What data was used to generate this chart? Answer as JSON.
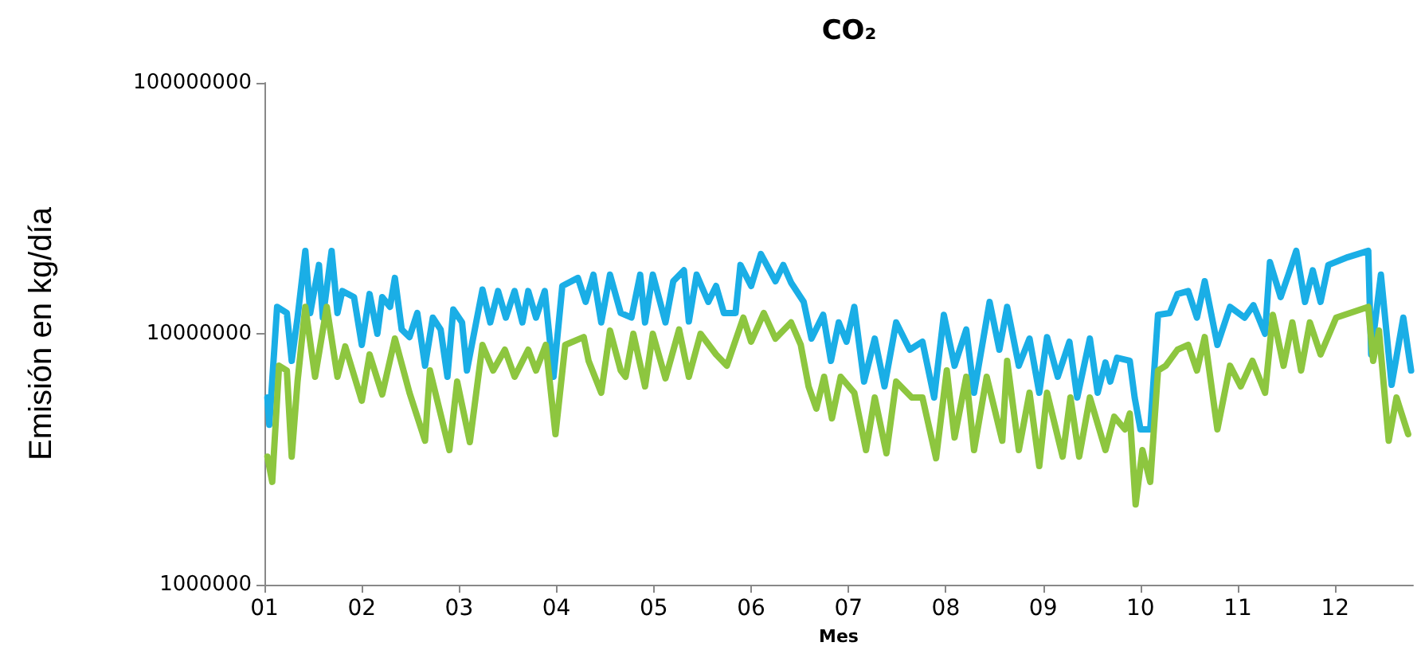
{
  "chart_data": {
    "type": "line",
    "title": "CO₂",
    "xlabel": "Mes",
    "ylabel": "Emisión en kg/día",
    "log": "y",
    "marker": "none",
    "line_style": "solid",
    "xlim": [
      1,
      12.8
    ],
    "xticks": [
      {
        "value": 1,
        "label": "01"
      },
      {
        "value": 2,
        "label": "02"
      },
      {
        "value": 3,
        "label": "03"
      },
      {
        "value": 4,
        "label": "04"
      },
      {
        "value": 5,
        "label": "05"
      },
      {
        "value": 6,
        "label": "06"
      },
      {
        "value": 7,
        "label": "07"
      },
      {
        "value": 8,
        "label": "08"
      },
      {
        "value": 9,
        "label": "09"
      },
      {
        "value": 10,
        "label": "10"
      },
      {
        "value": 11,
        "label": "11"
      },
      {
        "value": 12,
        "label": "12"
      }
    ],
    "ylim": [
      1000000,
      100000000
    ],
    "yticks": [
      1000000,
      10000000,
      100000000
    ],
    "series": [
      {
        "color": "#1aaee6",
        "x": [
          1.03,
          1.05,
          1.13,
          1.23,
          1.28,
          1.34,
          1.42,
          1.47,
          1.56,
          1.6,
          1.69,
          1.75,
          1.8,
          1.92,
          2.0,
          2.08,
          2.16,
          2.21,
          2.29,
          2.34,
          2.41,
          2.49,
          2.57,
          2.65,
          2.73,
          2.81,
          2.88,
          2.94,
          3.03,
          3.08,
          3.24,
          3.32,
          3.4,
          3.48,
          3.57,
          3.65,
          3.71,
          3.79,
          3.88,
          3.97,
          4.06,
          4.22,
          4.3,
          4.38,
          4.46,
          4.55,
          4.66,
          4.77,
          4.86,
          4.91,
          4.99,
          5.12,
          5.2,
          5.31,
          5.36,
          5.44,
          5.56,
          5.64,
          5.72,
          5.84,
          5.89,
          6.0,
          6.1,
          6.25,
          6.33,
          6.41,
          6.54,
          6.62,
          6.74,
          6.82,
          6.9,
          6.98,
          7.06,
          7.16,
          7.27,
          7.37,
          7.49,
          7.63,
          7.76,
          7.88,
          7.98,
          8.09,
          8.21,
          8.29,
          8.45,
          8.55,
          8.63,
          8.75,
          8.86,
          8.96,
          9.04,
          9.15,
          9.27,
          9.35,
          9.48,
          9.56,
          9.64,
          9.69,
          9.76,
          9.89,
          9.94,
          10.0,
          10.1,
          10.18,
          10.3,
          10.38,
          10.49,
          10.58,
          10.66,
          10.79,
          10.92,
          11.07,
          11.16,
          11.28,
          11.33,
          11.44,
          11.52,
          11.6,
          11.69,
          11.77,
          11.85,
          11.93,
          12.13,
          12.34,
          12.37,
          12.47,
          12.58,
          12.7,
          12.78
        ],
        "values": [
          5570000,
          4340000,
          12800000,
          12100000,
          7800000,
          11600000,
          21400000,
          12100000,
          18800000,
          11600000,
          21400000,
          12100000,
          14800000,
          14000000,
          9030000,
          14400000,
          10000000,
          14000000,
          12800000,
          16700000,
          10400000,
          9700000,
          12100000,
          7460000,
          11600000,
          10400000,
          6740000,
          12500000,
          11100000,
          7140000,
          15000000,
          11100000,
          14800000,
          11600000,
          14800000,
          11100000,
          14800000,
          11600000,
          14800000,
          6740000,
          15500000,
          16700000,
          13400000,
          17200000,
          11100000,
          17200000,
          12100000,
          11600000,
          17200000,
          11100000,
          17200000,
          11100000,
          16200000,
          17900000,
          11200000,
          17200000,
          13400000,
          15500000,
          12100000,
          12100000,
          18800000,
          15500000,
          20800000,
          16200000,
          18800000,
          16000000,
          13400000,
          9570000,
          11900000,
          7800000,
          11100000,
          9300000,
          12800000,
          6450000,
          9570000,
          6170000,
          11100000,
          8640000,
          9300000,
          5570000,
          11900000,
          7460000,
          10400000,
          5820000,
          13400000,
          8640000,
          12800000,
          7460000,
          9570000,
          5820000,
          9700000,
          6740000,
          9300000,
          5570000,
          9570000,
          5820000,
          7680000,
          6450000,
          8030000,
          7800000,
          5570000,
          4160000,
          4160000,
          11900000,
          12100000,
          14400000,
          14800000,
          11600000,
          16200000,
          9030000,
          12800000,
          11600000,
          13000000,
          10000000,
          19300000,
          14000000,
          17200000,
          21400000,
          13400000,
          17900000,
          13400000,
          18800000,
          20200000,
          21400000,
          8270000,
          17200000,
          6260000,
          11600000,
          7140000
        ]
      },
      {
        "color": "#8dc63f",
        "x": [
          1.03,
          1.08,
          1.15,
          1.23,
          1.28,
          1.34,
          1.42,
          1.52,
          1.64,
          1.75,
          1.83,
          2.0,
          2.08,
          2.21,
          2.34,
          2.49,
          2.65,
          2.7,
          2.9,
          2.98,
          3.11,
          3.24,
          3.35,
          3.47,
          3.57,
          3.71,
          3.79,
          3.89,
          3.99,
          4.09,
          4.28,
          4.33,
          4.46,
          4.55,
          4.66,
          4.71,
          4.79,
          4.91,
          4.99,
          5.12,
          5.26,
          5.36,
          5.48,
          5.64,
          5.75,
          5.92,
          6.0,
          6.13,
          6.25,
          6.41,
          6.51,
          6.59,
          6.67,
          6.75,
          6.83,
          6.92,
          7.06,
          7.18,
          7.27,
          7.39,
          7.49,
          7.65,
          7.76,
          7.9,
          8.01,
          8.09,
          8.21,
          8.29,
          8.42,
          8.58,
          8.63,
          8.75,
          8.86,
          8.96,
          9.04,
          9.2,
          9.28,
          9.37,
          9.48,
          9.64,
          9.73,
          9.84,
          9.89,
          9.95,
          10.02,
          10.1,
          10.18,
          10.26,
          10.38,
          10.49,
          10.58,
          10.66,
          10.79,
          10.92,
          11.03,
          11.15,
          11.28,
          11.36,
          11.47,
          11.56,
          11.65,
          11.74,
          11.85,
          12.01,
          12.34,
          12.39,
          12.45,
          12.55,
          12.63,
          12.75
        ],
        "values": [
          3240000,
          2570000,
          7460000,
          7140000,
          3240000,
          6450000,
          12800000,
          6740000,
          12800000,
          6740000,
          8900000,
          5410000,
          8270000,
          5730000,
          9570000,
          5820000,
          3750000,
          7140000,
          3440000,
          6450000,
          3700000,
          9030000,
          7140000,
          8640000,
          6740000,
          8640000,
          7140000,
          9030000,
          3980000,
          9030000,
          9700000,
          7800000,
          5820000,
          10300000,
          7140000,
          6740000,
          10000000,
          6170000,
          10000000,
          6640000,
          10400000,
          6740000,
          10000000,
          8270000,
          7460000,
          11600000,
          9300000,
          12100000,
          9570000,
          11100000,
          9030000,
          6170000,
          5030000,
          6740000,
          4600000,
          6740000,
          5820000,
          3440000,
          5570000,
          3340000,
          6450000,
          5570000,
          5570000,
          3190000,
          7140000,
          3860000,
          6740000,
          3440000,
          6740000,
          3750000,
          7800000,
          3440000,
          5820000,
          2970000,
          5820000,
          3240000,
          5570000,
          3240000,
          5570000,
          3440000,
          4670000,
          4160000,
          4810000,
          2090000,
          3440000,
          2570000,
          7140000,
          7460000,
          8640000,
          9030000,
          7140000,
          9700000,
          4160000,
          7460000,
          6170000,
          7800000,
          5820000,
          11900000,
          7460000,
          11100000,
          7140000,
          11100000,
          8270000,
          11600000,
          12800000,
          7800000,
          10300000,
          3750000,
          5570000,
          3980000
        ]
      }
    ]
  }
}
